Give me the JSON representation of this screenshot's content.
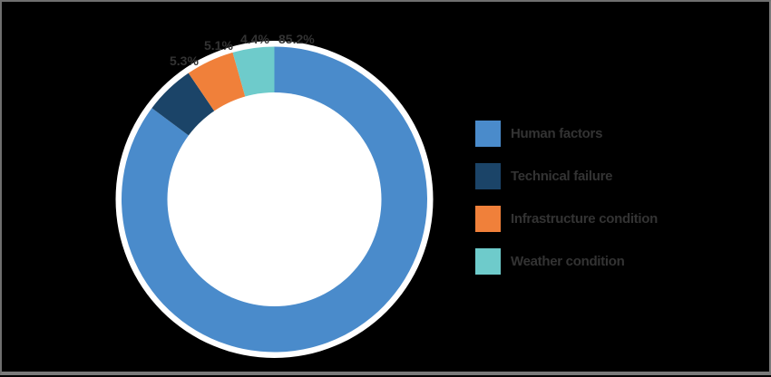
{
  "chart_data": {
    "type": "pie",
    "variant": "donut",
    "title": "",
    "categories": [
      "Human factors",
      "Technical failure",
      "Infrastructure condition",
      "Weather condition"
    ],
    "values": [
      85.2,
      5.3,
      5.1,
      4.4
    ],
    "labels": [
      "85.2%",
      "5.3%",
      "5.1%",
      "4.4%"
    ],
    "colors": [
      "#4a8bcb",
      "#1b4468",
      "#f0803a",
      "#6ecbcb"
    ],
    "start_angle": "12 o'clock",
    "direction": "clockwise",
    "legend_position": "right"
  },
  "legend": {
    "items": [
      {
        "label": "Human factors",
        "color": "#4a8bcb"
      },
      {
        "label": "Technical failure",
        "color": "#1b4468"
      },
      {
        "label": "Infrastructure condition",
        "color": "#f0803a"
      },
      {
        "label": "Weather condition",
        "color": "#6ecbcb"
      }
    ]
  },
  "data_labels": {
    "human_factors": "85.2%",
    "technical_failure": "5.3%",
    "infrastructure_condition": "5.1%",
    "weather_condition": "4.4%"
  }
}
